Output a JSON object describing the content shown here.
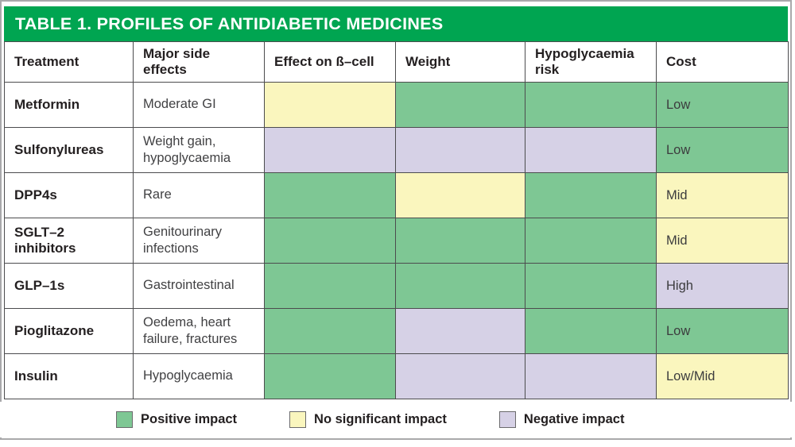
{
  "title": "TABLE 1. PROFILES OF ANTIDIABETIC MEDICINES",
  "colors": {
    "header_green": "#00A551",
    "positive": "#7EC794",
    "none": "#FAF6BE",
    "negative": "#D6D1E6"
  },
  "table": {
    "columns": [
      "Treatment",
      "Major side effects",
      "Effect on ß–cell",
      "Weight",
      "Hypoglycaemia risk",
      "Cost"
    ],
    "rows": [
      {
        "treatment": "Metformin",
        "side_effects": "Moderate GI",
        "beta_cell": "none",
        "weight": "positive",
        "hypo_risk": "positive",
        "cost": "Low",
        "cost_impact": "positive"
      },
      {
        "treatment": "Sulfonylureas",
        "side_effects": "Weight gain, hypoglycaemia",
        "beta_cell": "negative",
        "weight": "negative",
        "hypo_risk": "negative",
        "cost": "Low",
        "cost_impact": "positive"
      },
      {
        "treatment": "DPP4s",
        "side_effects": "Rare",
        "beta_cell": "positive",
        "weight": "none",
        "hypo_risk": "positive",
        "cost": "Mid",
        "cost_impact": "none"
      },
      {
        "treatment": "SGLT–2 inhibitors",
        "side_effects": "Genitourinary infections",
        "beta_cell": "positive",
        "weight": "positive",
        "hypo_risk": "positive",
        "cost": "Mid",
        "cost_impact": "none"
      },
      {
        "treatment": "GLP–1s",
        "side_effects": "Gastrointestinal",
        "beta_cell": "positive",
        "weight": "positive",
        "hypo_risk": "positive",
        "cost": "High",
        "cost_impact": "negative"
      },
      {
        "treatment": "Pioglitazone",
        "side_effects": "Oedema, heart failure, fractures",
        "beta_cell": "positive",
        "weight": "negative",
        "hypo_risk": "positive",
        "cost": "Low",
        "cost_impact": "positive"
      },
      {
        "treatment": "Insulin",
        "side_effects": "Hypoglycaemia",
        "beta_cell": "positive",
        "weight": "negative",
        "hypo_risk": "negative",
        "cost": "Low/Mid",
        "cost_impact": "none"
      }
    ]
  },
  "legend": [
    {
      "label": "Positive impact",
      "impact": "positive"
    },
    {
      "label": "No significant impact",
      "impact": "none"
    },
    {
      "label": "Negative impact",
      "impact": "negative"
    }
  ]
}
